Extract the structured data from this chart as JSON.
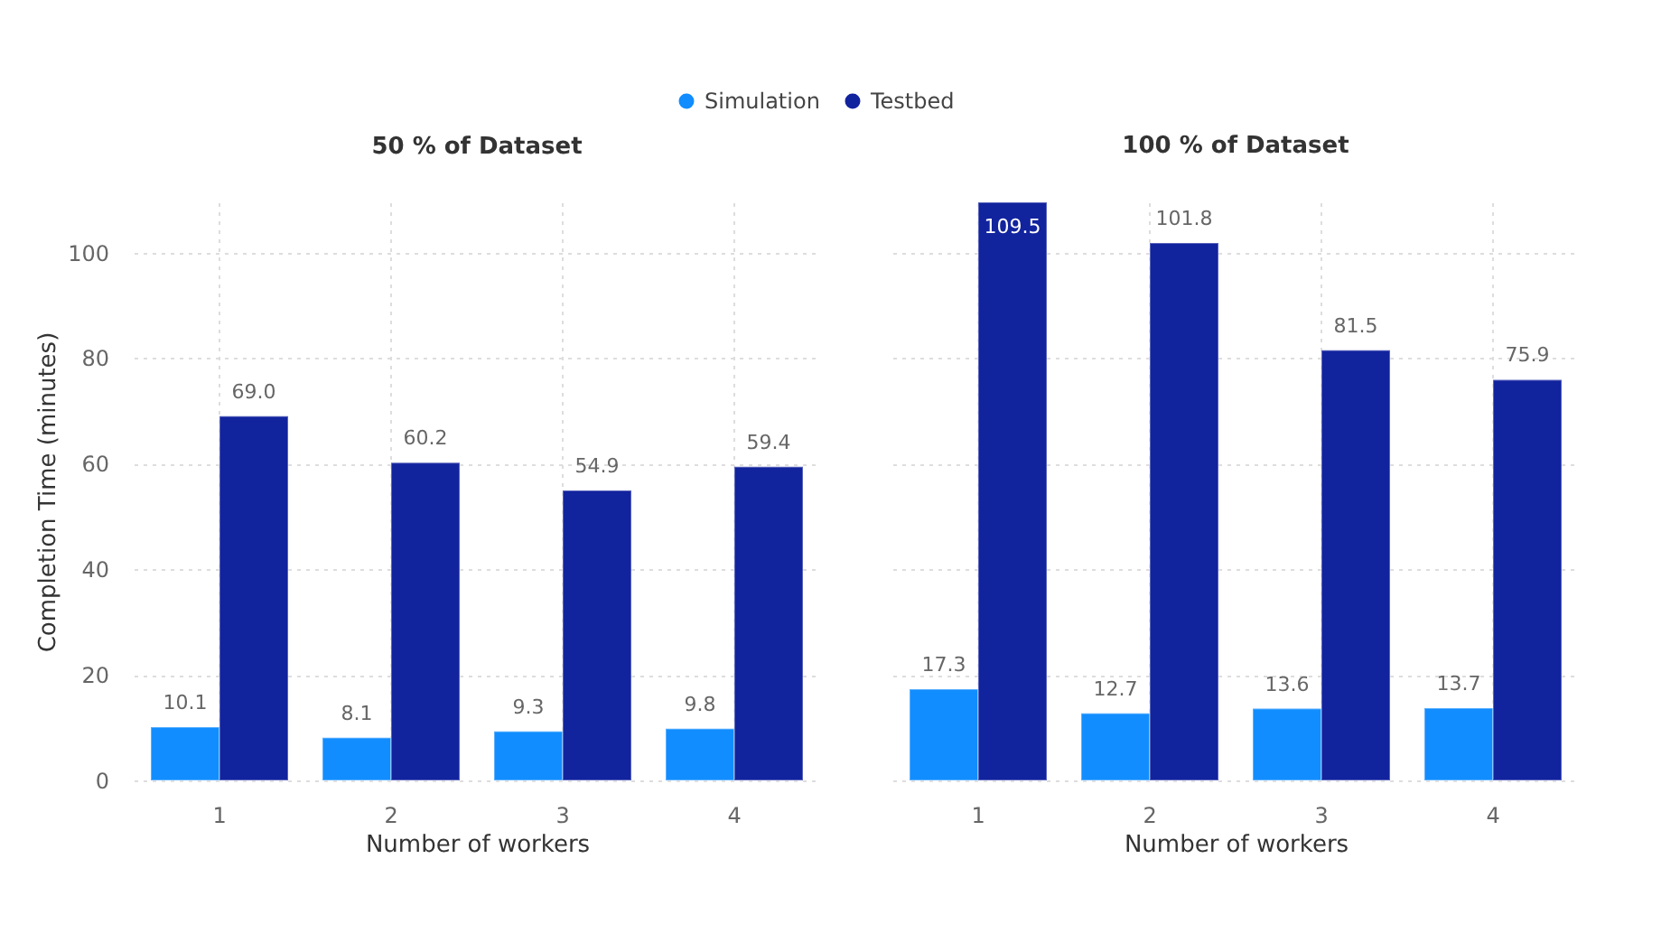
{
  "chart_data": [
    {
      "type": "bar",
      "title": "50 % of Dataset",
      "xlabel": "Number of workers",
      "ylabel": "Completion Time (minutes)",
      "categories": [
        "1",
        "2",
        "3",
        "4"
      ],
      "series": [
        {
          "name": "Simulation",
          "color": "#118dff",
          "values": [
            10.1,
            8.1,
            9.3,
            9.8
          ],
          "value_labels": [
            "10.1",
            "8.1",
            "9.3",
            "9.8"
          ]
        },
        {
          "name": "Testbed",
          "color": "#12239e",
          "values": [
            69.0,
            60.2,
            54.9,
            59.4
          ],
          "value_labels": [
            "69.0",
            "60.2",
            "54.9",
            "59.4"
          ]
        }
      ],
      "ylim": [
        0,
        109.5
      ],
      "yticks": [
        0,
        20,
        40,
        60,
        80,
        100
      ],
      "grid": true,
      "legend": "top"
    },
    {
      "type": "bar",
      "title": "100 % of Dataset",
      "xlabel": "Number of workers",
      "categories": [
        "1",
        "2",
        "3",
        "4"
      ],
      "series": [
        {
          "name": "Simulation",
          "color": "#118dff",
          "values": [
            17.3,
            12.7,
            13.6,
            13.7
          ],
          "value_labels": [
            "17.3",
            "12.7",
            "13.6",
            "13.7"
          ]
        },
        {
          "name": "Testbed",
          "color": "#12239e",
          "values": [
            109.5,
            101.8,
            81.5,
            75.9
          ],
          "value_labels": [
            "109.5",
            "101.8",
            "81.5",
            "75.9"
          ]
        }
      ],
      "ylim": [
        0,
        109.5
      ],
      "yticks": [
        0,
        20,
        40,
        60,
        80,
        100
      ],
      "grid": true,
      "tick_labels": "x"
    }
  ]
}
